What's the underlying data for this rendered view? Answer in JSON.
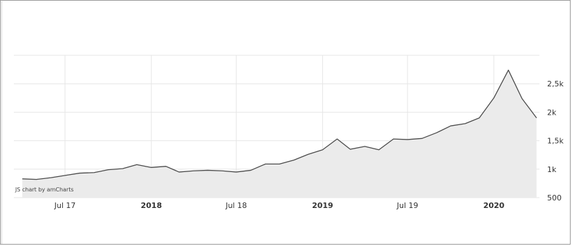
{
  "credit": "JS chart by amCharts",
  "colors": {
    "line": "#4a4a4a",
    "fill": "#ebebeb",
    "grid": "#e6e6e6"
  },
  "chart_data": {
    "type": "area",
    "title": "",
    "xlabel": "",
    "ylabel": "",
    "ylim": [
      500,
      3000
    ],
    "grid": true,
    "y_ticks": [
      {
        "value": 500,
        "label": "500"
      },
      {
        "value": 1000,
        "label": "1k"
      },
      {
        "value": 1500,
        "label": "1,5k"
      },
      {
        "value": 2000,
        "label": "2k"
      },
      {
        "value": 2500,
        "label": "2,5k"
      }
    ],
    "x_ticks": [
      {
        "date": "2017-07-01",
        "label": "Jul 17",
        "major": false
      },
      {
        "date": "2018-01-01",
        "label": "2018",
        "major": true
      },
      {
        "date": "2018-07-01",
        "label": "Jul 18",
        "major": false
      },
      {
        "date": "2019-01-01",
        "label": "2019",
        "major": true
      },
      {
        "date": "2019-07-01",
        "label": "Jul 19",
        "major": false
      },
      {
        "date": "2020-01-01",
        "label": "2020",
        "major": true
      }
    ],
    "series": [
      {
        "points": [
          [
            "2017-04-01",
            830
          ],
          [
            "2017-05-01",
            820
          ],
          [
            "2017-06-01",
            850
          ],
          [
            "2017-07-01",
            890
          ],
          [
            "2017-08-01",
            930
          ],
          [
            "2017-09-01",
            940
          ],
          [
            "2017-10-01",
            990
          ],
          [
            "2017-11-01",
            1010
          ],
          [
            "2017-12-01",
            1080
          ],
          [
            "2018-01-01",
            1030
          ],
          [
            "2018-02-01",
            1050
          ],
          [
            "2018-03-01",
            950
          ],
          [
            "2018-04-01",
            970
          ],
          [
            "2018-05-01",
            980
          ],
          [
            "2018-06-01",
            970
          ],
          [
            "2018-07-01",
            950
          ],
          [
            "2018-08-01",
            980
          ],
          [
            "2018-09-01",
            1090
          ],
          [
            "2018-10-01",
            1090
          ],
          [
            "2018-11-01",
            1160
          ],
          [
            "2018-12-01",
            1260
          ],
          [
            "2019-01-01",
            1340
          ],
          [
            "2019-02-01",
            1530
          ],
          [
            "2019-03-01",
            1350
          ],
          [
            "2019-04-01",
            1400
          ],
          [
            "2019-05-01",
            1340
          ],
          [
            "2019-06-01",
            1530
          ],
          [
            "2019-07-01",
            1520
          ],
          [
            "2019-08-01",
            1540
          ],
          [
            "2019-09-01",
            1640
          ],
          [
            "2019-10-01",
            1760
          ],
          [
            "2019-11-01",
            1800
          ],
          [
            "2019-12-01",
            1900
          ],
          [
            "2020-01-01",
            2250
          ],
          [
            "2020-02-01",
            2740
          ],
          [
            "2020-03-01",
            2240
          ],
          [
            "2020-04-01",
            1900
          ]
        ]
      }
    ]
  }
}
